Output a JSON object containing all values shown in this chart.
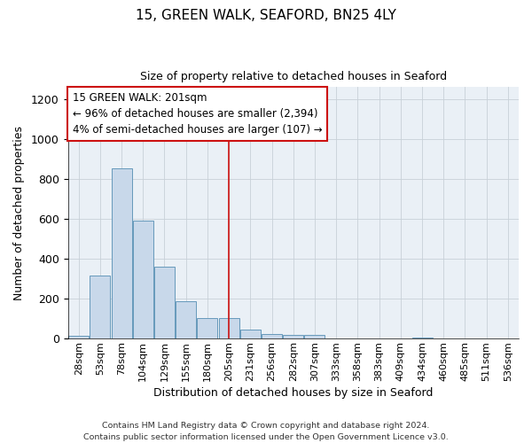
{
  "title1": "15, GREEN WALK, SEAFORD, BN25 4LY",
  "title2": "Size of property relative to detached houses in Seaford",
  "xlabel": "Distribution of detached houses by size in Seaford",
  "ylabel": "Number of detached properties",
  "categories": [
    "28sqm",
    "53sqm",
    "78sqm",
    "104sqm",
    "129sqm",
    "155sqm",
    "180sqm",
    "205sqm",
    "231sqm",
    "256sqm",
    "282sqm",
    "307sqm",
    "333sqm",
    "358sqm",
    "383sqm",
    "409sqm",
    "434sqm",
    "460sqm",
    "485sqm",
    "511sqm",
    "536sqm"
  ],
  "values": [
    12,
    315,
    855,
    590,
    360,
    185,
    103,
    103,
    47,
    25,
    20,
    20,
    0,
    0,
    0,
    0,
    5,
    0,
    0,
    0,
    0
  ],
  "bar_color": "#c8d8ea",
  "bar_edge_color": "#6699bb",
  "vline_x": 7.0,
  "vline_color": "#cc1111",
  "ylim": [
    0,
    1260
  ],
  "yticks": [
    0,
    200,
    400,
    600,
    800,
    1000,
    1200
  ],
  "grid_color": "#c8d0d8",
  "bg_color": "#eaf0f6",
  "annotation_text": "15 GREEN WALK: 201sqm\n← 96% of detached houses are smaller (2,394)\n4% of semi-detached houses are larger (107) →",
  "annotation_box_facecolor": "#ffffff",
  "annotation_box_edgecolor": "#cc1111",
  "footer": "Contains HM Land Registry data © Crown copyright and database right 2024.\nContains public sector information licensed under the Open Government Licence v3.0."
}
